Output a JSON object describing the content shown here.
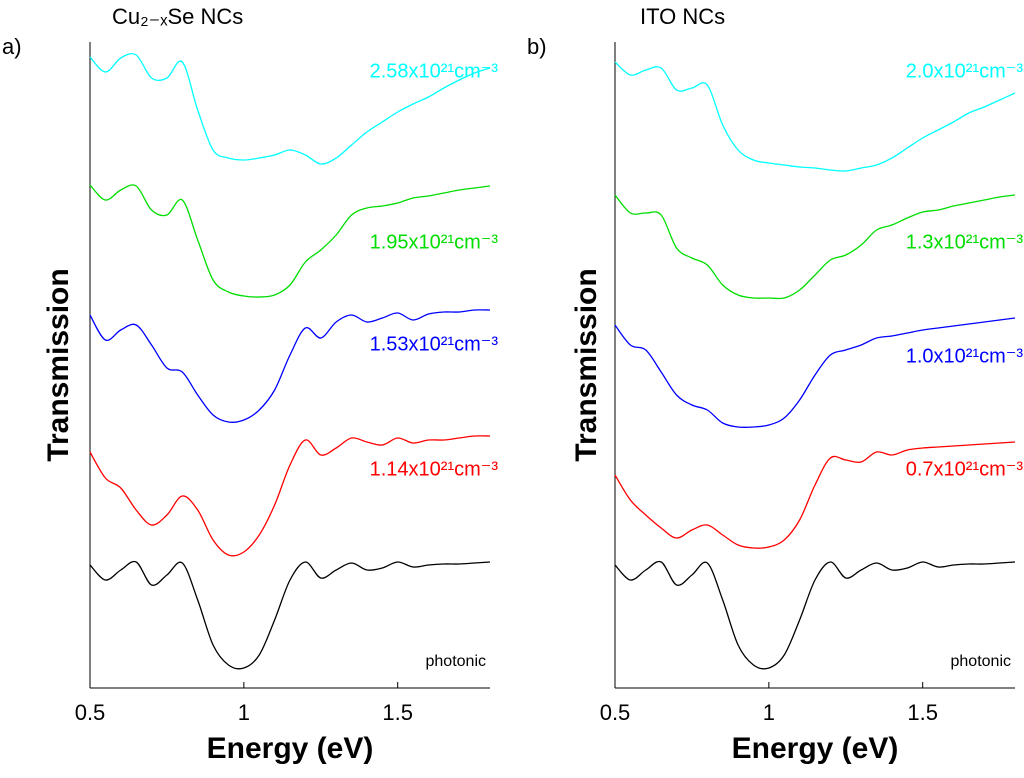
{
  "chart_data": [
    {
      "type": "line",
      "panel_label": "a)",
      "title": "Cu₂₋ₓSe NCs",
      "xlabel": "Energy (eV)",
      "ylabel": "Transmission",
      "xlim": [
        0.5,
        1.8
      ],
      "xticks": [
        0.5,
        1,
        1.5
      ],
      "ylim": [
        0,
        646
      ],
      "x": [
        0.5,
        0.55,
        0.6,
        0.65,
        0.7,
        0.75,
        0.8,
        0.85,
        0.9,
        0.95,
        1.0,
        1.05,
        1.1,
        1.15,
        1.2,
        1.25,
        1.3,
        1.35,
        1.4,
        1.45,
        1.5,
        1.55,
        1.6,
        1.65,
        1.7,
        1.75,
        1.8
      ],
      "series": [
        {
          "name": "2.58x10²¹cm⁻³",
          "color": "#00ffff",
          "values": [
            631,
            616,
            630,
            633,
            610,
            610,
            626,
            578,
            538,
            530,
            528,
            530,
            533,
            538,
            533,
            524,
            530,
            543,
            556,
            566,
            576,
            584,
            591,
            600,
            608,
            615,
            620
          ]
        },
        {
          "name": "1.95x10²¹cm⁻³",
          "color": "#00dd00",
          "values": [
            503,
            488,
            498,
            502,
            478,
            473,
            488,
            448,
            408,
            396,
            392,
            391,
            393,
            403,
            426,
            438,
            453,
            473,
            480,
            482,
            485,
            490,
            492,
            495,
            498,
            500,
            502
          ]
        },
        {
          "name": "1.53x10²¹cm⁻³",
          "color": "#0000ff",
          "values": [
            373,
            348,
            358,
            363,
            343,
            320,
            316,
            293,
            273,
            266,
            268,
            278,
            298,
            333,
            360,
            350,
            366,
            373,
            366,
            370,
            375,
            368,
            374,
            376,
            376,
            378,
            378
          ]
        },
        {
          "name": "1.14x10²¹cm⁻³",
          "color": "#ff0000",
          "values": [
            236,
            210,
            200,
            178,
            163,
            173,
            192,
            178,
            148,
            133,
            136,
            153,
            183,
            223,
            248,
            233,
            240,
            250,
            246,
            243,
            250,
            245,
            248,
            248,
            250,
            252,
            252
          ]
        },
        {
          "name": "photonic",
          "color": "#000000",
          "values": [
            123,
            108,
            118,
            126,
            103,
            113,
            125,
            88,
            43,
            23,
            20,
            33,
            68,
            108,
            126,
            110,
            118,
            125,
            118,
            120,
            126,
            121,
            123,
            124,
            124,
            125,
            126
          ]
        }
      ]
    },
    {
      "type": "line",
      "panel_label": "b)",
      "title": "ITO NCs",
      "xlabel": "Energy (eV)",
      "ylabel": "Transmission",
      "xlim": [
        0.5,
        1.8
      ],
      "xticks": [
        0.5,
        1,
        1.5
      ],
      "ylim": [
        0,
        646
      ],
      "x": [
        0.5,
        0.55,
        0.6,
        0.65,
        0.7,
        0.75,
        0.8,
        0.85,
        0.9,
        0.95,
        1.0,
        1.05,
        1.1,
        1.15,
        1.2,
        1.25,
        1.3,
        1.35,
        1.4,
        1.45,
        1.5,
        1.55,
        1.6,
        1.65,
        1.7,
        1.75,
        1.8
      ],
      "series": [
        {
          "name": "2.0x10²¹cm⁻³",
          "color": "#00ffff",
          "values": [
            626,
            613,
            618,
            620,
            598,
            600,
            603,
            563,
            538,
            528,
            525,
            523,
            521,
            520,
            518,
            517,
            520,
            523,
            530,
            540,
            550,
            558,
            566,
            575,
            581,
            588,
            595
          ]
        },
        {
          "name": "1.3x10²¹cm⁻³",
          "color": "#00dd00",
          "values": [
            493,
            475,
            475,
            473,
            440,
            430,
            423,
            403,
            393,
            390,
            390,
            390,
            398,
            413,
            428,
            433,
            443,
            458,
            463,
            470,
            476,
            478,
            482,
            485,
            488,
            491,
            493
          ]
        },
        {
          "name": "1.0x10²¹cm⁻³",
          "color": "#0000ff",
          "values": [
            363,
            343,
            338,
            316,
            293,
            283,
            278,
            265,
            261,
            261,
            263,
            270,
            288,
            313,
            333,
            338,
            343,
            350,
            352,
            355,
            358,
            360,
            362,
            364,
            366,
            368,
            370
          ]
        },
        {
          "name": "0.7x10²¹cm⁻³",
          "color": "#ff0000",
          "values": [
            213,
            188,
            173,
            160,
            150,
            158,
            163,
            153,
            143,
            140,
            141,
            148,
            168,
            203,
            230,
            228,
            226,
            236,
            233,
            238,
            240,
            241,
            242,
            243,
            244,
            245,
            246
          ]
        },
        {
          "name": "photonic",
          "color": "#000000",
          "values": [
            123,
            108,
            118,
            126,
            103,
            113,
            125,
            88,
            43,
            23,
            20,
            33,
            68,
            108,
            126,
            110,
            118,
            125,
            118,
            120,
            126,
            121,
            123,
            124,
            124,
            125,
            126
          ]
        }
      ]
    }
  ]
}
